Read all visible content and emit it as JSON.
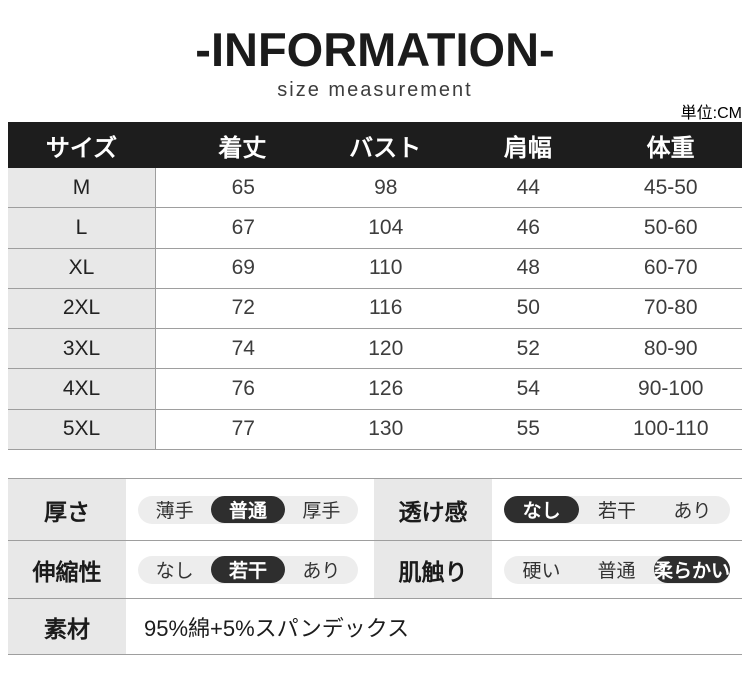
{
  "header": {
    "title": "-INFORMATION-",
    "subtitle": "size measurement",
    "unit_label": "単位:CM"
  },
  "size_table": {
    "columns": [
      "サイズ",
      "着丈",
      "バスト",
      "肩幅",
      "体重"
    ],
    "rows": [
      {
        "size": "M",
        "values": [
          "65",
          "98",
          "44",
          "45-50"
        ]
      },
      {
        "size": "L",
        "values": [
          "67",
          "104",
          "46",
          "50-60"
        ]
      },
      {
        "size": "XL",
        "values": [
          "69",
          "110",
          "48",
          "60-70"
        ]
      },
      {
        "size": "2XL",
        "values": [
          "72",
          "116",
          "50",
          "70-80"
        ]
      },
      {
        "size": "3XL",
        "values": [
          "74",
          "120",
          "52",
          "80-90"
        ]
      },
      {
        "size": "4XL",
        "values": [
          "76",
          "126",
          "54",
          "90-100"
        ]
      },
      {
        "size": "5XL",
        "values": [
          "77",
          "130",
          "55",
          "100-110"
        ]
      }
    ]
  },
  "attributes": {
    "thickness": {
      "label": "厚さ",
      "options": [
        "薄手",
        "普通",
        "厚手"
      ],
      "selected": 1
    },
    "sheerness": {
      "label": "透け感",
      "options": [
        "なし",
        "若干",
        "あり"
      ],
      "selected": 0
    },
    "stretch": {
      "label": "伸縮性",
      "options": [
        "なし",
        "若干",
        "あり"
      ],
      "selected": 1
    },
    "texture": {
      "label": "肌触り",
      "options": [
        "硬い",
        "普通",
        "柔らかい"
      ],
      "selected": 2
    },
    "material": {
      "label": "素材",
      "value": "95%綿+5%スパンデックス"
    }
  },
  "colors": {
    "header_bg": "#1d1d1d",
    "label_bg": "#e8e8e8",
    "pill_bg": "#ededed",
    "selected_bg": "#2e2e2e",
    "border": "#9e9e9e",
    "text_dark": "#1b1b1b"
  }
}
